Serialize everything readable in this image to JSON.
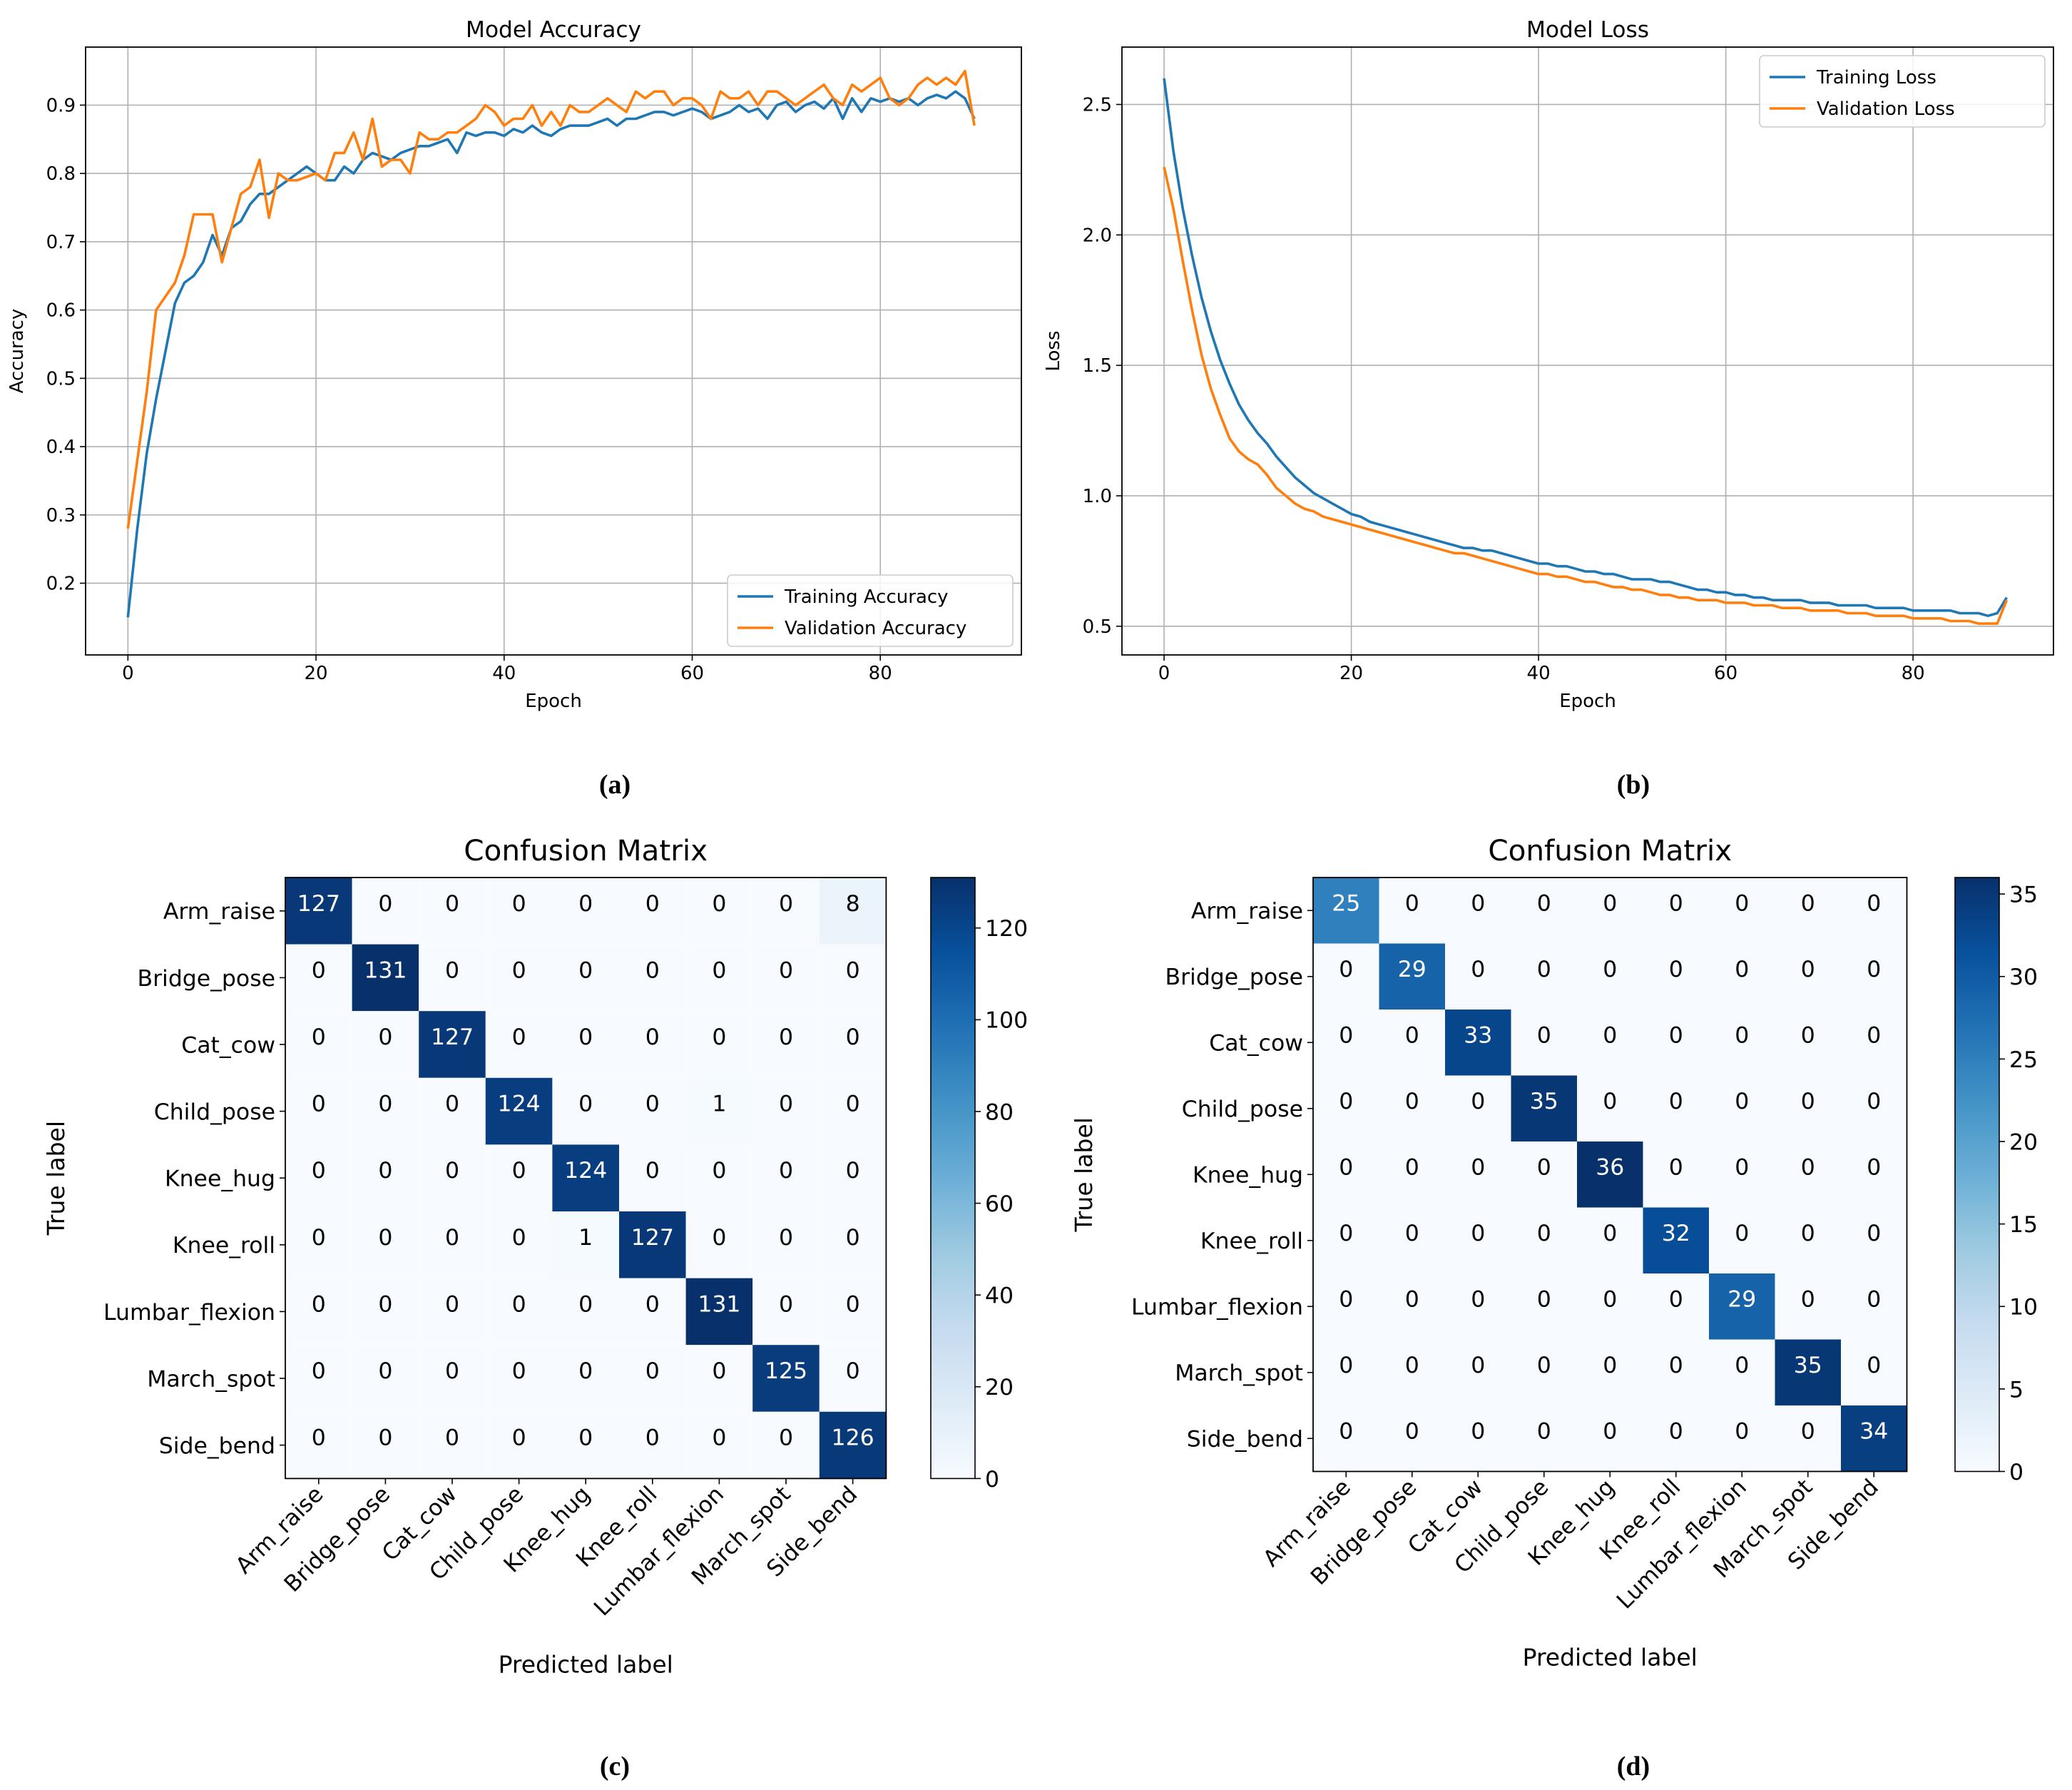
{
  "figure": {
    "panel_labels": [
      "(a)",
      "(b)",
      "(c)",
      "(d)"
    ]
  },
  "colors": {
    "training": "#1f77b4",
    "validation": "#ff7f0e",
    "grid": "#b0b0b0",
    "axis": "#000000",
    "cmap_light": "#f7fbff",
    "cmap_dark": "#08306b"
  },
  "chart_data": [
    {
      "id": "accuracy",
      "type": "line",
      "title": "Model Accuracy",
      "xlabel": "Epoch",
      "ylabel": "Accuracy",
      "xlim": [
        -4.5,
        95
      ],
      "ylim": [
        0.095,
        0.985
      ],
      "xticks": [
        0,
        20,
        40,
        60,
        80
      ],
      "yticks": [
        0.2,
        0.3,
        0.4,
        0.5,
        0.6,
        0.7,
        0.8,
        0.9
      ],
      "ytick_labels": [
        "0.2",
        "0.3",
        "0.4",
        "0.5",
        "0.6",
        "0.7",
        "0.8",
        "0.9"
      ],
      "grid": true,
      "legend": "lower right",
      "series": [
        {
          "name": "Training Accuracy",
          "color_key": "training",
          "values": [
            0.15,
            0.28,
            0.39,
            0.47,
            0.54,
            0.61,
            0.64,
            0.65,
            0.67,
            0.71,
            0.68,
            0.72,
            0.73,
            0.755,
            0.77,
            0.77,
            0.78,
            0.79,
            0.8,
            0.81,
            0.8,
            0.79,
            0.79,
            0.81,
            0.8,
            0.82,
            0.83,
            0.825,
            0.82,
            0.83,
            0.835,
            0.84,
            0.84,
            0.845,
            0.85,
            0.83,
            0.86,
            0.855,
            0.86,
            0.86,
            0.855,
            0.865,
            0.86,
            0.87,
            0.86,
            0.855,
            0.865,
            0.87,
            0.87,
            0.87,
            0.875,
            0.88,
            0.87,
            0.88,
            0.88,
            0.885,
            0.89,
            0.89,
            0.885,
            0.89,
            0.895,
            0.89,
            0.88,
            0.885,
            0.89,
            0.9,
            0.89,
            0.895,
            0.88,
            0.9,
            0.905,
            0.89,
            0.9,
            0.905,
            0.895,
            0.91,
            0.88,
            0.91,
            0.89,
            0.91,
            0.905,
            0.91,
            0.905,
            0.91,
            0.9,
            0.91,
            0.915,
            0.91,
            0.92,
            0.91,
            0.88
          ]
        },
        {
          "name": "Validation Accuracy",
          "color_key": "validation",
          "values": [
            0.28,
            0.38,
            0.48,
            0.6,
            0.62,
            0.64,
            0.68,
            0.74,
            0.74,
            0.74,
            0.67,
            0.72,
            0.77,
            0.78,
            0.82,
            0.735,
            0.8,
            0.79,
            0.79,
            0.795,
            0.8,
            0.79,
            0.83,
            0.83,
            0.86,
            0.82,
            0.88,
            0.81,
            0.82,
            0.82,
            0.8,
            0.86,
            0.85,
            0.85,
            0.86,
            0.86,
            0.87,
            0.88,
            0.9,
            0.89,
            0.87,
            0.88,
            0.88,
            0.9,
            0.87,
            0.89,
            0.87,
            0.9,
            0.89,
            0.89,
            0.9,
            0.91,
            0.9,
            0.89,
            0.92,
            0.91,
            0.92,
            0.92,
            0.9,
            0.91,
            0.91,
            0.9,
            0.88,
            0.92,
            0.91,
            0.91,
            0.92,
            0.9,
            0.92,
            0.92,
            0.91,
            0.9,
            0.91,
            0.92,
            0.93,
            0.91,
            0.9,
            0.93,
            0.92,
            0.93,
            0.94,
            0.91,
            0.9,
            0.91,
            0.93,
            0.94,
            0.93,
            0.94,
            0.93,
            0.95,
            0.87
          ]
        }
      ]
    },
    {
      "id": "loss",
      "type": "line",
      "title": "Model Loss",
      "xlabel": "Epoch",
      "ylabel": "Loss",
      "xlim": [
        -4.5,
        95
      ],
      "ylim": [
        0.39,
        2.72
      ],
      "xticks": [
        0,
        20,
        40,
        60,
        80
      ],
      "yticks": [
        0.5,
        1.0,
        1.5,
        2.0,
        2.5
      ],
      "ytick_labels": [
        "0.5",
        "1.0",
        "1.5",
        "2.0",
        "2.5"
      ],
      "grid": true,
      "legend": "upper right",
      "series": [
        {
          "name": "Training Loss",
          "color_key": "training",
          "values": [
            2.6,
            2.32,
            2.1,
            1.92,
            1.76,
            1.63,
            1.52,
            1.43,
            1.35,
            1.29,
            1.24,
            1.2,
            1.15,
            1.11,
            1.07,
            1.04,
            1.01,
            0.99,
            0.97,
            0.95,
            0.93,
            0.92,
            0.9,
            0.89,
            0.88,
            0.87,
            0.86,
            0.85,
            0.84,
            0.83,
            0.82,
            0.81,
            0.8,
            0.8,
            0.79,
            0.79,
            0.78,
            0.77,
            0.76,
            0.75,
            0.74,
            0.74,
            0.73,
            0.73,
            0.72,
            0.71,
            0.71,
            0.7,
            0.7,
            0.69,
            0.68,
            0.68,
            0.68,
            0.67,
            0.67,
            0.66,
            0.65,
            0.64,
            0.64,
            0.63,
            0.63,
            0.62,
            0.62,
            0.61,
            0.61,
            0.6,
            0.6,
            0.6,
            0.6,
            0.59,
            0.59,
            0.59,
            0.58,
            0.58,
            0.58,
            0.58,
            0.57,
            0.57,
            0.57,
            0.57,
            0.56,
            0.56,
            0.56,
            0.56,
            0.56,
            0.55,
            0.55,
            0.55,
            0.54,
            0.55,
            0.61
          ]
        },
        {
          "name": "Validation Loss",
          "color_key": "validation",
          "values": [
            2.26,
            2.1,
            1.9,
            1.71,
            1.54,
            1.41,
            1.31,
            1.22,
            1.17,
            1.14,
            1.12,
            1.08,
            1.03,
            1.0,
            0.97,
            0.95,
            0.94,
            0.92,
            0.91,
            0.9,
            0.89,
            0.88,
            0.87,
            0.86,
            0.85,
            0.84,
            0.83,
            0.82,
            0.81,
            0.8,
            0.79,
            0.78,
            0.78,
            0.77,
            0.76,
            0.75,
            0.74,
            0.73,
            0.72,
            0.71,
            0.7,
            0.7,
            0.69,
            0.69,
            0.68,
            0.67,
            0.67,
            0.66,
            0.65,
            0.65,
            0.64,
            0.64,
            0.63,
            0.62,
            0.62,
            0.61,
            0.61,
            0.6,
            0.6,
            0.6,
            0.59,
            0.59,
            0.59,
            0.58,
            0.58,
            0.58,
            0.57,
            0.57,
            0.57,
            0.56,
            0.56,
            0.56,
            0.56,
            0.55,
            0.55,
            0.55,
            0.54,
            0.54,
            0.54,
            0.54,
            0.53,
            0.53,
            0.53,
            0.53,
            0.52,
            0.52,
            0.52,
            0.51,
            0.51,
            0.51,
            0.6
          ]
        }
      ]
    },
    {
      "id": "cm_c",
      "type": "heatmap",
      "title": "Confusion Matrix",
      "xlabel": "Predicted label",
      "ylabel": "True label",
      "labels": [
        "Arm_raise",
        "Bridge_pose",
        "Cat_cow",
        "Child_pose",
        "Knee_hug",
        "Knee_roll",
        "Lumbar_flexion",
        "March_spot",
        "Side_bend"
      ],
      "matrix": [
        [
          127,
          0,
          0,
          0,
          0,
          0,
          0,
          0,
          8
        ],
        [
          0,
          131,
          0,
          0,
          0,
          0,
          0,
          0,
          0
        ],
        [
          0,
          0,
          127,
          0,
          0,
          0,
          0,
          0,
          0
        ],
        [
          0,
          0,
          0,
          124,
          0,
          0,
          1,
          0,
          0
        ],
        [
          0,
          0,
          0,
          0,
          124,
          0,
          0,
          0,
          0
        ],
        [
          0,
          0,
          0,
          0,
          1,
          127,
          0,
          0,
          0
        ],
        [
          0,
          0,
          0,
          0,
          0,
          0,
          131,
          0,
          0
        ],
        [
          0,
          0,
          0,
          0,
          0,
          0,
          0,
          125,
          0
        ],
        [
          0,
          0,
          0,
          0,
          0,
          0,
          0,
          0,
          126
        ]
      ],
      "vmin": 0,
      "vmax": 131,
      "colorbar_ticks": [
        0,
        20,
        40,
        60,
        80,
        100,
        120
      ]
    },
    {
      "id": "cm_d",
      "type": "heatmap",
      "title": "Confusion Matrix",
      "xlabel": "Predicted label",
      "ylabel": "True label",
      "labels": [
        "Arm_raise",
        "Bridge_pose",
        "Cat_cow",
        "Child_pose",
        "Knee_hug",
        "Knee_roll",
        "Lumbar_flexion",
        "March_spot",
        "Side_bend"
      ],
      "matrix": [
        [
          25,
          0,
          0,
          0,
          0,
          0,
          0,
          0,
          0
        ],
        [
          0,
          29,
          0,
          0,
          0,
          0,
          0,
          0,
          0
        ],
        [
          0,
          0,
          33,
          0,
          0,
          0,
          0,
          0,
          0
        ],
        [
          0,
          0,
          0,
          35,
          0,
          0,
          0,
          0,
          0
        ],
        [
          0,
          0,
          0,
          0,
          36,
          0,
          0,
          0,
          0
        ],
        [
          0,
          0,
          0,
          0,
          0,
          32,
          0,
          0,
          0
        ],
        [
          0,
          0,
          0,
          0,
          0,
          0,
          29,
          0,
          0
        ],
        [
          0,
          0,
          0,
          0,
          0,
          0,
          0,
          35,
          0
        ],
        [
          0,
          0,
          0,
          0,
          0,
          0,
          0,
          0,
          34
        ]
      ],
      "vmin": 0,
      "vmax": 36,
      "colorbar_ticks": [
        0,
        5,
        10,
        15,
        20,
        25,
        30,
        35
      ]
    }
  ]
}
